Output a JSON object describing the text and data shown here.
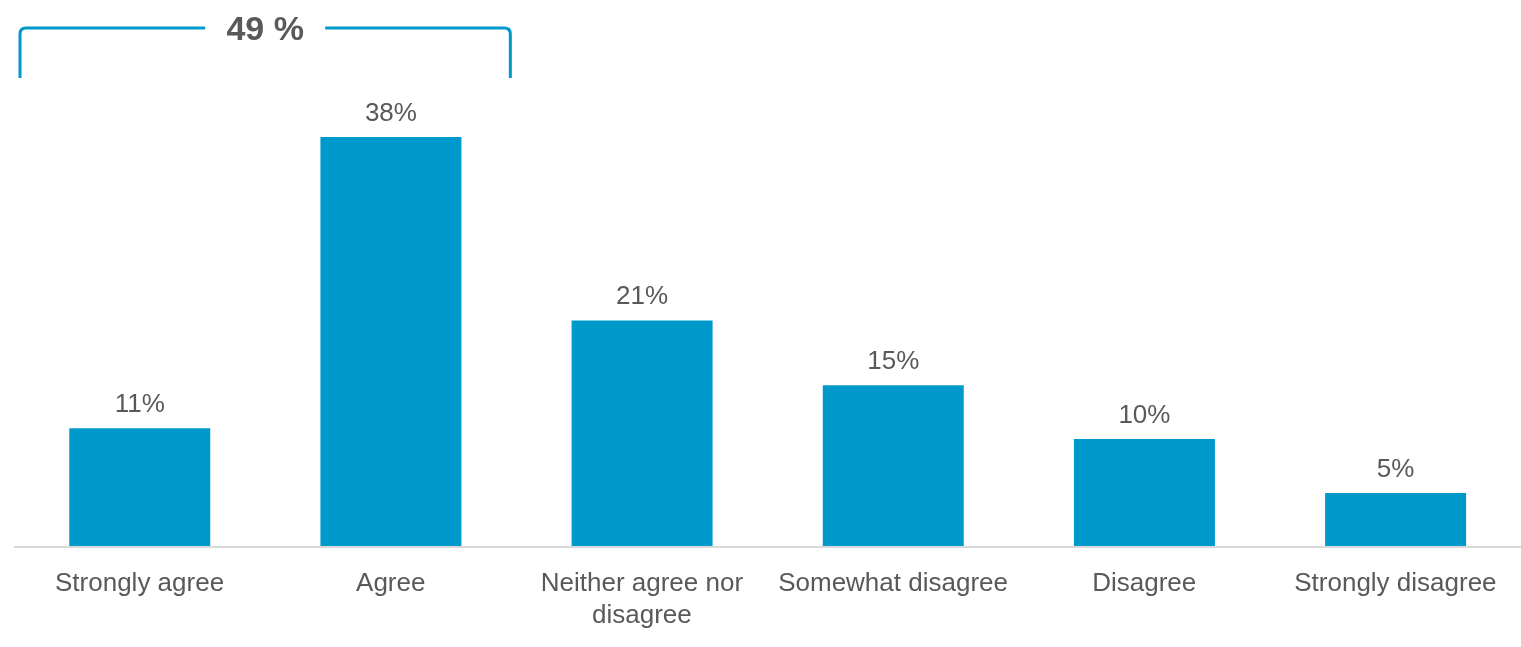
{
  "chart_data": {
    "type": "bar",
    "categories": [
      "Strongly agree",
      "Agree",
      "Neither agree nor disagree",
      "Somewhat disagree",
      "Disagree",
      "Strongly disagree"
    ],
    "values": [
      11,
      38,
      21,
      15,
      10,
      5
    ],
    "value_labels": [
      "11%",
      "38%",
      "21%",
      "15%",
      "10%",
      "5%"
    ],
    "color": "#0099cc",
    "annotations": [
      "49 %"
    ],
    "grid": false
  }
}
